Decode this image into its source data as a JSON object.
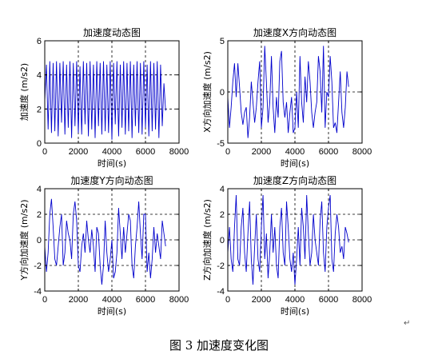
{
  "caption": "图 3  加速度变化图",
  "paragraph_mark": "↵",
  "chart_data": [
    {
      "type": "line",
      "title": "加速度动态图",
      "xlabel": "时间(s)",
      "ylabel": "加速度 (m/s2)",
      "xlim": [
        0,
        8000
      ],
      "ylim": [
        0,
        6
      ],
      "xticks": [
        0,
        2000,
        4000,
        6000,
        8000
      ],
      "yticks": [
        0,
        2,
        4,
        6
      ],
      "grid": "dashed",
      "series": [
        {
          "color": "#0000cc",
          "x": [
            0,
            100,
            200,
            300,
            400,
            500,
            600,
            700,
            800,
            900,
            1000,
            1100,
            1200,
            1300,
            1400,
            1500,
            1600,
            1700,
            1800,
            1900,
            2000,
            2100,
            2200,
            2300,
            2400,
            2500,
            2600,
            2700,
            2800,
            2900,
            3000,
            3100,
            3200,
            3300,
            3400,
            3500,
            3600,
            3700,
            3800,
            3900,
            4000,
            4100,
            4200,
            4300,
            4400,
            4500,
            4600,
            4700,
            4800,
            4900,
            5000,
            5100,
            5200,
            5300,
            5400,
            5500,
            5600,
            5700,
            5800,
            5900,
            6000,
            6100,
            6200,
            6300,
            6400,
            6500,
            6600,
            6700,
            6800,
            6900,
            7000,
            7100,
            7200
          ],
          "y": [
            2.5,
            4.6,
            0.8,
            4.8,
            0.6,
            4.7,
            0.7,
            4.8,
            0.4,
            4.7,
            1.2,
            4.8,
            0.5,
            4.6,
            0.9,
            4.8,
            0.3,
            4.7,
            1.0,
            4.8,
            0.6,
            4.5,
            0.5,
            4.8,
            1.1,
            4.7,
            0.4,
            4.8,
            0.8,
            4.6,
            0.3,
            4.8,
            1.0,
            4.7,
            0.5,
            4.8,
            0.7,
            4.6,
            0.6,
            4.8,
            0.2,
            4.7,
            1.1,
            4.8,
            0.4,
            4.6,
            0.9,
            4.8,
            0.5,
            4.7,
            0.7,
            4.8,
            0.3,
            4.6,
            1.0,
            4.8,
            0.6,
            4.7,
            0.5,
            4.8,
            0.9,
            4.6,
            0.4,
            4.8,
            0.7,
            4.7,
            0.8,
            4.8,
            0.3,
            4.6,
            1.0,
            3.5,
            1.9
          ]
        }
      ]
    },
    {
      "type": "line",
      "title": "加速度X方向动态图",
      "xlabel": "时间(s)",
      "ylabel": "X方向加速度 (m/s2)",
      "xlim": [
        0,
        8000
      ],
      "ylim": [
        -5,
        5
      ],
      "xticks": [
        0,
        2000,
        4000,
        6000,
        8000
      ],
      "yticks": [
        -5,
        0,
        5
      ],
      "grid": "dashed",
      "series": [
        {
          "color": "#0000cc",
          "x": [
            0,
            100,
            200,
            300,
            400,
            500,
            600,
            700,
            800,
            900,
            1000,
            1100,
            1200,
            1300,
            1400,
            1500,
            1600,
            1700,
            1800,
            1900,
            2000,
            2100,
            2200,
            2300,
            2400,
            2500,
            2600,
            2700,
            2800,
            2900,
            3000,
            3100,
            3200,
            3300,
            3400,
            3500,
            3600,
            3700,
            3800,
            3900,
            4000,
            4100,
            4200,
            4300,
            4400,
            4500,
            4600,
            4700,
            4800,
            4900,
            5000,
            5100,
            5200,
            5300,
            5400,
            5500,
            5600,
            5700,
            5800,
            5900,
            6000,
            6100,
            6200,
            6300,
            6400,
            6500,
            6600,
            6700,
            6800,
            6900,
            7000,
            7100,
            7200
          ],
          "y": [
            -0.5,
            -3.5,
            -1.5,
            1.0,
            2.8,
            -0.5,
            2.8,
            0.5,
            -2.0,
            -3.2,
            -2.0,
            -1.5,
            -4.5,
            -2.5,
            1.0,
            -1.0,
            -3.0,
            -1.5,
            1.0,
            3.0,
            -3.5,
            -1.5,
            4.5,
            1.0,
            -3.0,
            -1.0,
            3.5,
            -1.5,
            -4.0,
            -0.5,
            -2.5,
            3.0,
            4.0,
            -1.0,
            -2.5,
            -1.0,
            -4.0,
            -2.0,
            -0.5,
            -4.0,
            -3.5,
            0.0,
            -3.5,
            3.5,
            -1.0,
            -3.0,
            1.5,
            -1.0,
            3.0,
            1.0,
            -2.0,
            -3.5,
            -2.0,
            -1.0,
            3.5,
            2.0,
            -2.0,
            4.5,
            -3.5,
            0.0,
            -0.5,
            3.5,
            1.0,
            -3.5,
            -3.0,
            -4.0,
            -1.0,
            2.0,
            -2.0,
            -3.5,
            -1.5,
            2.0,
            0.5
          ]
        }
      ]
    },
    {
      "type": "line",
      "title": "加速度Y方向动态图",
      "xlabel": "时间(s)",
      "ylabel": "Y方向加速度 (m/s2)",
      "xlim": [
        0,
        8000
      ],
      "ylim": [
        -4,
        4
      ],
      "xticks": [
        0,
        2000,
        4000,
        6000,
        8000
      ],
      "yticks": [
        -4,
        -2,
        0,
        2,
        4
      ],
      "grid": "dashed",
      "series": [
        {
          "color": "#0000cc",
          "x": [
            0,
            100,
            200,
            300,
            400,
            500,
            600,
            700,
            800,
            900,
            1000,
            1100,
            1200,
            1300,
            1400,
            1500,
            1600,
            1700,
            1800,
            1900,
            2000,
            2100,
            2200,
            2300,
            2400,
            2500,
            2600,
            2700,
            2800,
            2900,
            3000,
            3100,
            3200,
            3300,
            3400,
            3500,
            3600,
            3700,
            3800,
            3900,
            4000,
            4100,
            4200,
            4300,
            4400,
            4500,
            4600,
            4700,
            4800,
            4900,
            5000,
            5100,
            5200,
            5300,
            5400,
            5500,
            5600,
            5700,
            5800,
            5900,
            6000,
            6100,
            6200,
            6300,
            6400,
            6500,
            6600,
            6700,
            6800,
            6900,
            7000,
            7100,
            7200
          ],
          "y": [
            -0.5,
            -2.5,
            -1.0,
            2.0,
            3.2,
            1.0,
            -1.5,
            -2.0,
            -0.5,
            1.0,
            2.0,
            -2.0,
            -1.0,
            1.5,
            0.5,
            0.0,
            -1.5,
            2.0,
            3.0,
            1.5,
            -2.0,
            -2.5,
            -0.5,
            0.5,
            -1.0,
            1.5,
            0.0,
            -1.0,
            0.8,
            -0.5,
            -2.5,
            1.0,
            0.5,
            -2.0,
            -3.5,
            -2.0,
            1.5,
            -1.0,
            -2.5,
            -1.5,
            0.0,
            -3.0,
            -2.5,
            -1.0,
            2.5,
            0.5,
            -1.5,
            1.0,
            -1.0,
            0.5,
            2.0,
            1.5,
            -2.0,
            -3.0,
            -0.5,
            1.0,
            3.0,
            0.5,
            -1.5,
            2.0,
            2.0,
            -2.5,
            -1.0,
            -3.0,
            -1.5,
            1.0,
            -1.0,
            0.5,
            -0.5,
            -1.5,
            1.5,
            0.5,
            -0.5
          ]
        }
      ]
    },
    {
      "type": "line",
      "title": "加速度Z方向动态图",
      "xlabel": "时间(s)",
      "ylabel": "Z方向加速度 (m/s2)",
      "xlim": [
        0,
        8000
      ],
      "ylim": [
        -4,
        4
      ],
      "xticks": [
        0,
        2000,
        4000,
        6000,
        8000
      ],
      "yticks": [
        -4,
        -2,
        0,
        2,
        4
      ],
      "grid": "dashed",
      "series": [
        {
          "color": "#0000cc",
          "x": [
            0,
            100,
            200,
            300,
            400,
            500,
            600,
            700,
            800,
            900,
            1000,
            1100,
            1200,
            1300,
            1400,
            1500,
            1600,
            1700,
            1800,
            1900,
            2000,
            2100,
            2200,
            2300,
            2400,
            2500,
            2600,
            2700,
            2800,
            2900,
            3000,
            3100,
            3200,
            3300,
            3400,
            3500,
            3600,
            3700,
            3800,
            3900,
            4000,
            4100,
            4200,
            4300,
            4400,
            4500,
            4600,
            4700,
            4800,
            4900,
            5000,
            5100,
            5200,
            5300,
            5400,
            5500,
            5600,
            5700,
            5800,
            5900,
            6000,
            6100,
            6200,
            6300,
            6400,
            6500,
            6600,
            6700,
            6800,
            6900,
            7000,
            7100,
            7200
          ],
          "y": [
            -1.0,
            1.0,
            -1.5,
            -2.5,
            1.0,
            3.5,
            -1.5,
            -2.0,
            1.0,
            2.5,
            -1.0,
            -2.5,
            0.5,
            3.0,
            -1.5,
            -3.5,
            -0.5,
            2.0,
            -1.5,
            -2.5,
            1.0,
            3.5,
            -1.5,
            0.5,
            -3.0,
            -1.0,
            2.0,
            -1.0,
            1.0,
            -2.0,
            -3.0,
            1.0,
            2.5,
            -1.0,
            -2.0,
            3.0,
            1.0,
            -1.5,
            -2.5,
            -1.0,
            -3.5,
            -1.5,
            1.0,
            -2.0,
            2.5,
            1.0,
            -1.5,
            3.5,
            0.5,
            -2.0,
            -1.0,
            2.0,
            0.0,
            -1.0,
            -2.0,
            1.5,
            3.0,
            -1.0,
            -2.5,
            1.0,
            2.5,
            3.5,
            -1.5,
            -2.5,
            0.5,
            2.0,
            1.0,
            -1.0,
            -0.5,
            -1.5,
            1.0,
            0.5,
            -0.2
          ]
        }
      ]
    }
  ]
}
